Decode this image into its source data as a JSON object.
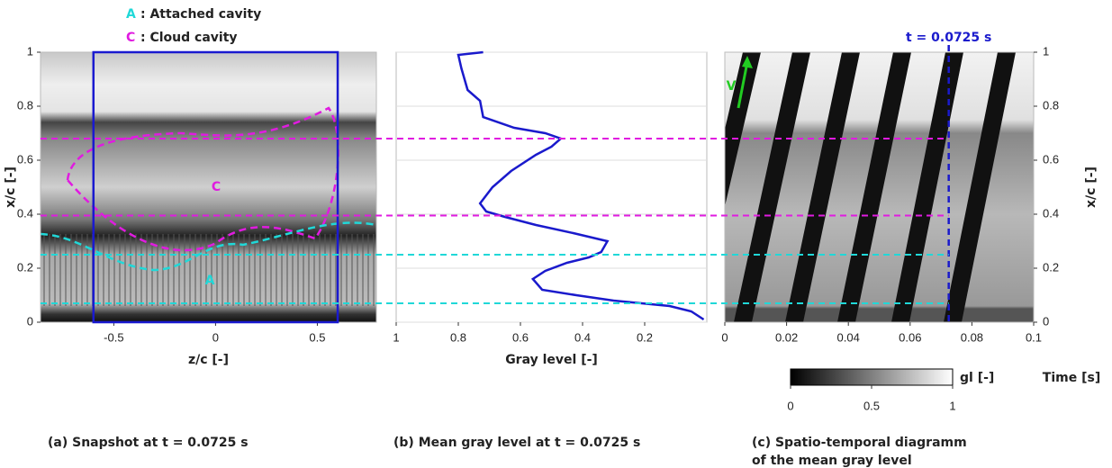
{
  "annotations": {
    "legend": [
      {
        "key": "A",
        "text": ": Attached cavity",
        "color": "#20d8d8"
      },
      {
        "key": "C",
        "text": ": Cloud cavity",
        "color": "#e01be0"
      }
    ]
  },
  "guides": [
    {
      "value": 0.68,
      "color": "#e01be0"
    },
    {
      "value": 0.395,
      "color": "#e01be0"
    },
    {
      "value": 0.25,
      "color": "#20d8d8"
    },
    {
      "value": 0.07,
      "color": "#20d8d8"
    }
  ],
  "chart_data": [
    {
      "type": "image",
      "caption": "(a) Snapshot at t = 0.0725 s",
      "xlabel": "z/c [-]",
      "ylabel": "x/c [-]",
      "xlim": [
        -0.86,
        0.79
      ],
      "ylim": [
        0,
        1
      ],
      "xticks": [
        -0.5,
        0,
        0.5
      ],
      "yticks": [
        0,
        0.2,
        0.4,
        0.6,
        0.8,
        1
      ],
      "box": {
        "xlim": [
          -0.6,
          0.6
        ],
        "color": "#1a1ad0"
      },
      "region_labels": [
        {
          "text": "C",
          "color": "#e01be0"
        },
        {
          "text": "A",
          "color": "#20d8d8"
        }
      ]
    },
    {
      "type": "line",
      "caption": "(b) Mean gray level at t = 0.0725 s",
      "xlabel": "Gray level [-]",
      "xlim": [
        1,
        0
      ],
      "ylim": [
        0,
        1
      ],
      "xticks": [
        1,
        0.8,
        0.6,
        0.4,
        0.2
      ],
      "yticks": [
        0,
        0.2,
        0.4,
        0.6,
        0.8,
        1
      ],
      "grid": true,
      "series": [
        {
          "color": "#1a1acc",
          "x": [
            0.72,
            0.8,
            0.79,
            0.77,
            0.73,
            0.72,
            0.62,
            0.52,
            0.47,
            0.5,
            0.55,
            0.63,
            0.69,
            0.73,
            0.71,
            0.65,
            0.55,
            0.43,
            0.32,
            0.34,
            0.38,
            0.45,
            0.52,
            0.56,
            0.53,
            0.42,
            0.3,
            0.12,
            0.05,
            0.01
          ],
          "values": [
            1,
            0.99,
            0.94,
            0.86,
            0.82,
            0.76,
            0.72,
            0.7,
            0.68,
            0.65,
            0.62,
            0.56,
            0.5,
            0.44,
            0.41,
            0.39,
            0.36,
            0.33,
            0.3,
            0.26,
            0.24,
            0.22,
            0.19,
            0.16,
            0.12,
            0.1,
            0.08,
            0.06,
            0.04,
            0.01
          ]
        }
      ]
    },
    {
      "type": "spatiotemporal",
      "caption": [
        "(c) Spatio-temporal diagramm",
        "of the mean gray level"
      ],
      "xlabel": "Time [s]",
      "ylabel": "x/c [-]",
      "xlim": [
        0,
        0.1
      ],
      "ylim": [
        0,
        1
      ],
      "xticks": [
        0,
        0.02,
        0.04,
        0.06,
        0.08,
        0.1
      ],
      "yticks": [
        0,
        0.2,
        0.4,
        0.6,
        0.8,
        1
      ],
      "marker": {
        "value": 0.0725,
        "label": "t = 0.0725 s",
        "color": "#1a1acc"
      },
      "arrow_label": "V",
      "colorbar": {
        "label": "gl [-]",
        "lim": [
          0,
          1
        ],
        "ticks": [
          0,
          0.5,
          1
        ]
      }
    }
  ]
}
